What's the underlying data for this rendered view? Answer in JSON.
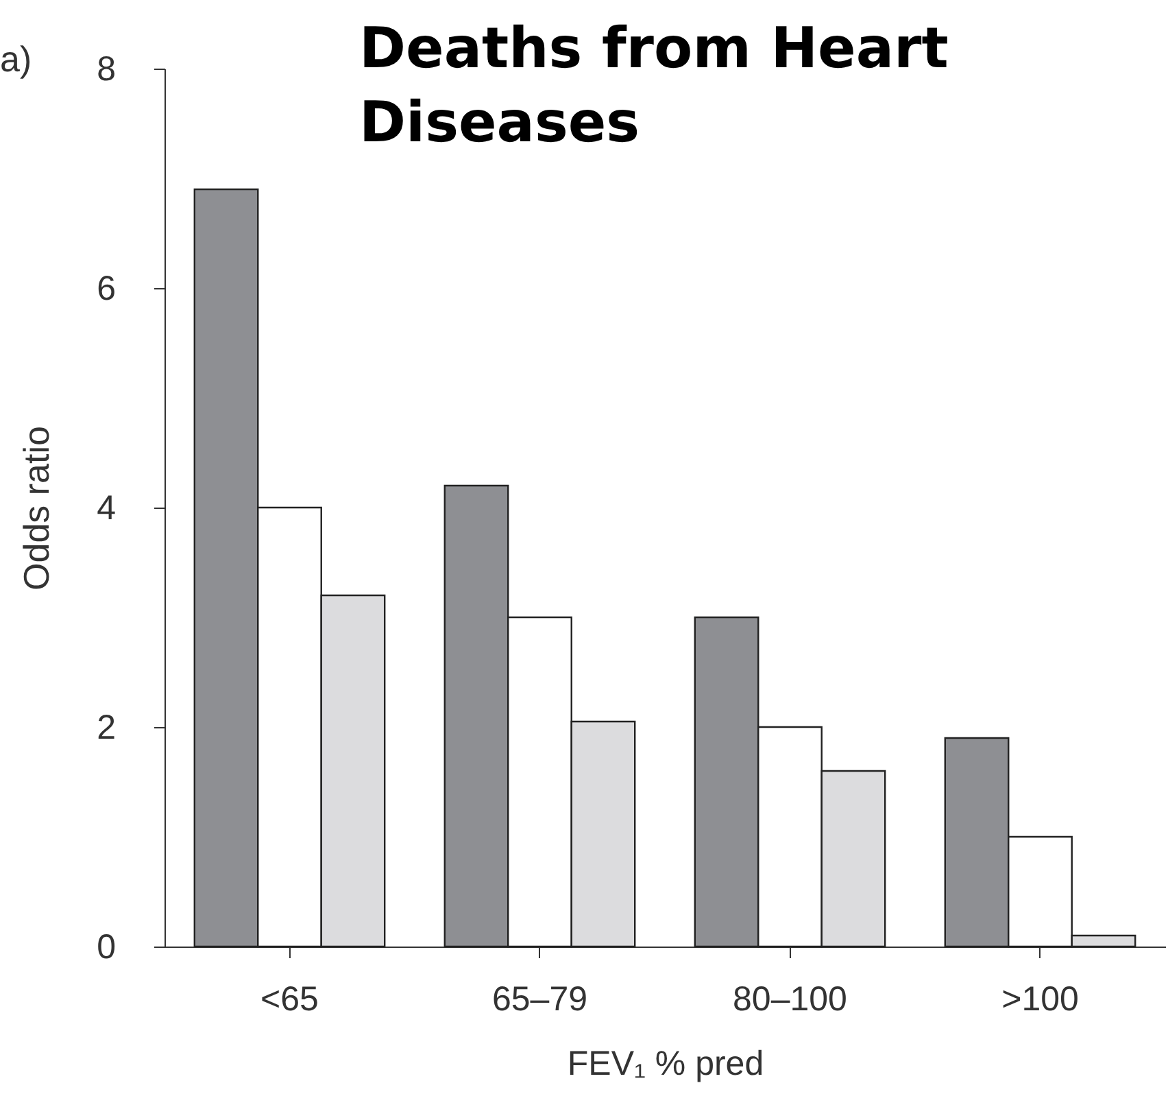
{
  "chart_data": {
    "type": "bar",
    "title": "Deaths from Heart Diseases",
    "xlabel": "FEV₁ % pred",
    "ylabel": "Odds ratio",
    "annotations": [
      "a)"
    ],
    "categories": [
      "<65",
      "65–79",
      "80–100",
      ">100"
    ],
    "series": [
      {
        "color": "#8e8f93",
        "values": [
          6.9,
          4.2,
          3.0,
          1.9
        ]
      },
      {
        "color": "#ffffff",
        "values": [
          4.0,
          3.0,
          2.0,
          1.0
        ]
      },
      {
        "color": "#dcdcde",
        "values": [
          3.2,
          2.05,
          1.6,
          0.1
        ]
      }
    ],
    "ylim": [
      0,
      8
    ],
    "yticks": [
      0,
      2,
      4,
      6,
      8
    ],
    "grid": false,
    "legend": false
  }
}
